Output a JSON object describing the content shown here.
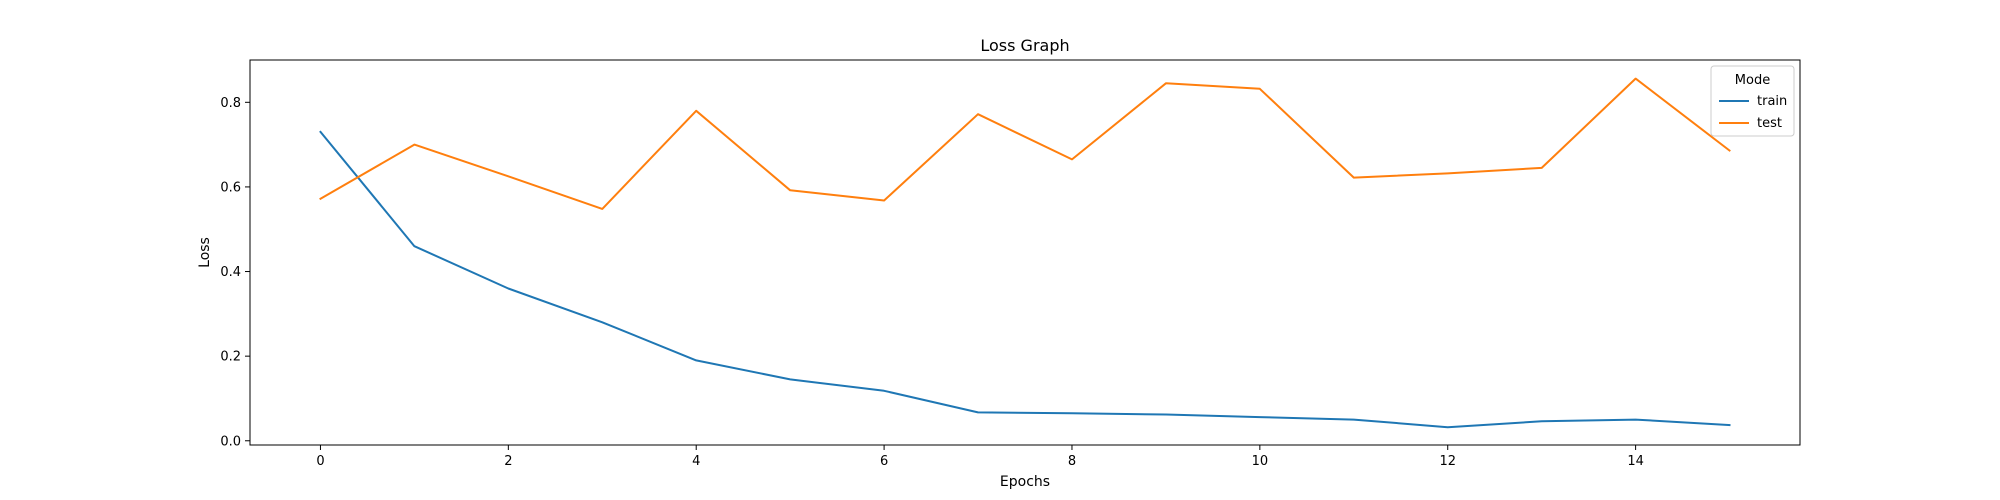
{
  "chart_data": {
    "type": "line",
    "title": "Loss Graph",
    "xlabel": "Epochs",
    "ylabel": "Loss",
    "xlim": [
      -0.75,
      15.75
    ],
    "ylim": [
      -0.01,
      0.9
    ],
    "xticks": [
      0,
      2,
      4,
      6,
      8,
      10,
      12,
      14
    ],
    "yticks": [
      0.0,
      0.2,
      0.4,
      0.6,
      0.8
    ],
    "xtick_labels": [
      "0",
      "2",
      "4",
      "6",
      "8",
      "10",
      "12",
      "14"
    ],
    "ytick_labels": [
      "0.0",
      "0.2",
      "0.4",
      "0.6",
      "0.8"
    ],
    "x": [
      0,
      1,
      2,
      3,
      4,
      5,
      6,
      7,
      8,
      9,
      10,
      11,
      12,
      13,
      14,
      15
    ],
    "grid": false,
    "legend": {
      "title": "Mode",
      "position": "upper right"
    },
    "series": [
      {
        "name": "train",
        "color": "#1f77b4",
        "values": [
          0.73,
          0.46,
          0.36,
          0.28,
          0.19,
          0.145,
          0.118,
          0.067,
          0.065,
          0.062,
          0.056,
          0.05,
          0.032,
          0.046,
          0.05,
          0.037
        ]
      },
      {
        "name": "test",
        "color": "#ff7f0e",
        "values": [
          0.572,
          0.7,
          0.625,
          0.548,
          0.78,
          0.592,
          0.568,
          0.772,
          0.665,
          0.845,
          0.832,
          0.622,
          0.632,
          0.645,
          0.856,
          0.686
        ]
      }
    ]
  }
}
